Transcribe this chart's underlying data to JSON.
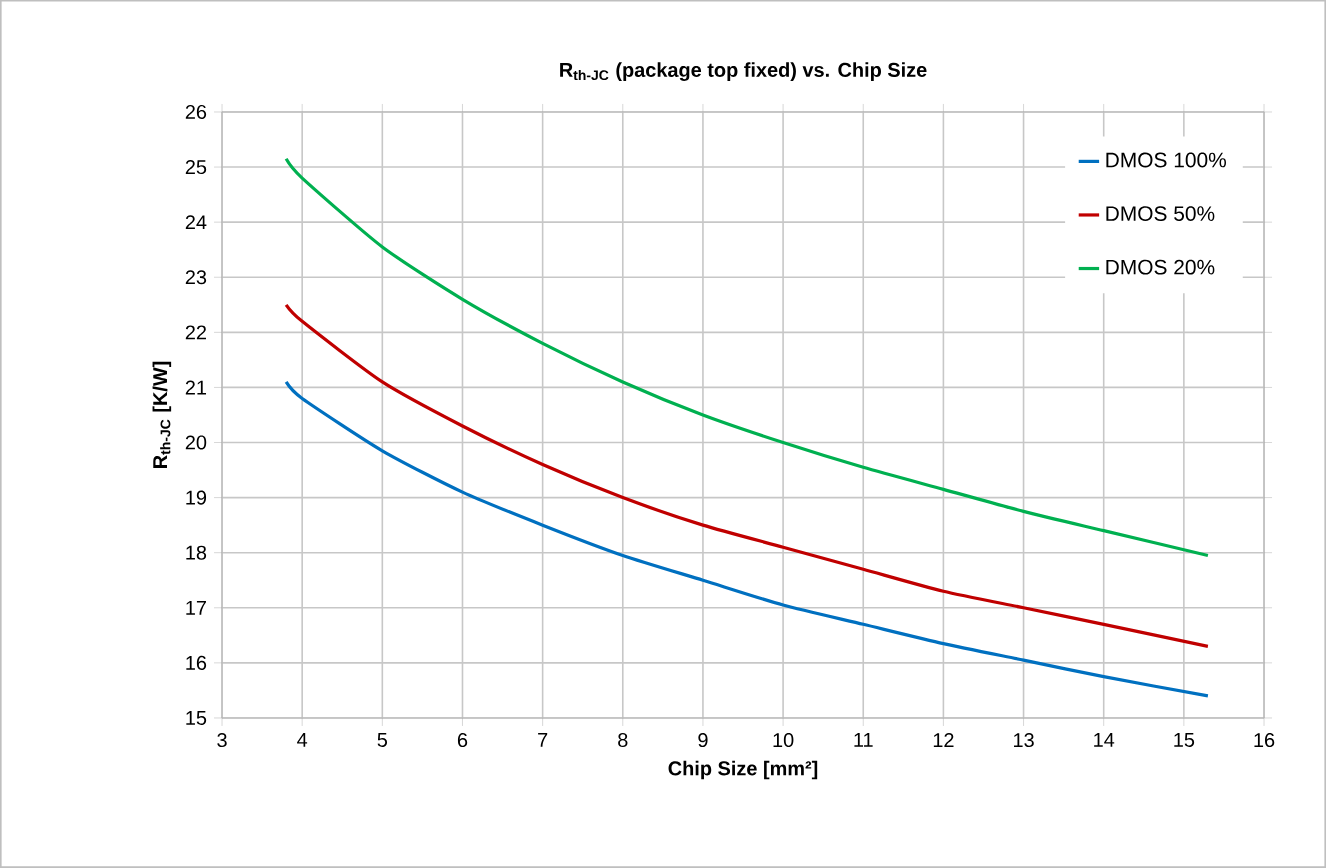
{
  "chart_data": {
    "type": "line",
    "title": "R$_{th-JC}$ (package top fixed) vs. Chip Size",
    "xlabel": "Chip Size [mm²]",
    "ylabel": "R$_{th-JC}$ [K/W]",
    "xlim": [
      3,
      16
    ],
    "xticks": [
      3,
      4,
      5,
      6,
      7,
      8,
      9,
      10,
      11,
      12,
      13,
      14,
      15,
      16
    ],
    "ylim": [
      15,
      26
    ],
    "yticks": [
      15,
      16,
      17,
      18,
      19,
      20,
      21,
      22,
      23,
      24,
      25,
      26
    ],
    "grid": true,
    "legend": "top right",
    "marker": "none",
    "line_style": "solid",
    "x": [
      3.8,
      4,
      5,
      6,
      7,
      8,
      9,
      10,
      11,
      12,
      13,
      14,
      15.3
    ],
    "series": [
      {
        "name": "DMOS 100%",
        "color": "#0070c0",
        "values": [
          21.1,
          20.8,
          19.85,
          19.1,
          18.5,
          17.95,
          17.5,
          17.05,
          16.7,
          16.35,
          16.05,
          15.75,
          15.4
        ]
      },
      {
        "name": "DMOS 50%",
        "color": "#c00000",
        "values": [
          22.5,
          22.2,
          21.1,
          20.3,
          19.6,
          19.0,
          18.5,
          18.1,
          17.7,
          17.3,
          17.0,
          16.7,
          16.3
        ]
      },
      {
        "name": "DMOS 20%",
        "color": "#00b050",
        "values": [
          25.15,
          24.8,
          23.55,
          22.6,
          21.8,
          21.1,
          20.5,
          20.0,
          19.55,
          19.15,
          18.75,
          18.4,
          17.95
        ]
      }
    ]
  }
}
